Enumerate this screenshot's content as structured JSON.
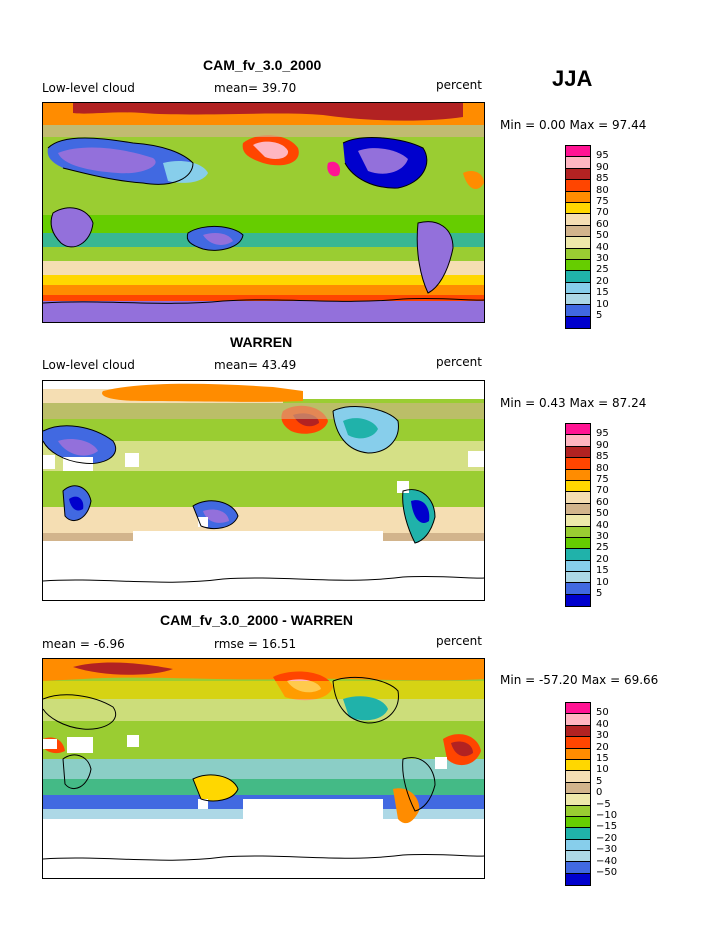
{
  "season": "JJA",
  "colors": [
    "#ff1493",
    "#ffb6c1",
    "#b22222",
    "#ff4500",
    "#ff8c00",
    "#ffd700",
    "#f5deb3",
    "#d2b48c",
    "#eee8aa",
    "#9acd32",
    "#66cd00",
    "#20b2aa",
    "#87ceeb",
    "#add8e6",
    "#4169e1",
    "#0000cd",
    "#9370db"
  ],
  "panels": [
    {
      "title": "CAM_fv_3.0_2000",
      "left_label": "Low-level cloud",
      "mid_label": "mean=  39.70",
      "right_label": "percent",
      "minmax": "Min =   0.00 Max =  97.44",
      "levels": [
        "95",
        "90",
        "85",
        "80",
        "75",
        "70",
        "60",
        "50",
        "40",
        "30",
        "25",
        "20",
        "15",
        "10",
        "5"
      ]
    },
    {
      "title": "WARREN",
      "left_label": "Low-level cloud",
      "mid_label": "mean=  43.49",
      "right_label": "percent",
      "minmax": "Min =   0.43 Max =  87.24",
      "levels": [
        "95",
        "90",
        "85",
        "80",
        "75",
        "70",
        "60",
        "50",
        "40",
        "30",
        "25",
        "20",
        "15",
        "10",
        "5"
      ]
    },
    {
      "title": "CAM_fv_3.0_2000 - WARREN",
      "left_label": "mean =  -6.96",
      "mid_label": "rmse =  16.51",
      "right_label": "percent",
      "minmax": "Min = -57.20 Max =  69.66",
      "levels": [
        "50",
        "40",
        "30",
        "20",
        "15",
        "10",
        "5",
        "0",
        "−5",
        "−10",
        "−15",
        "−20",
        "−30",
        "−40",
        "−50"
      ]
    }
  ]
}
